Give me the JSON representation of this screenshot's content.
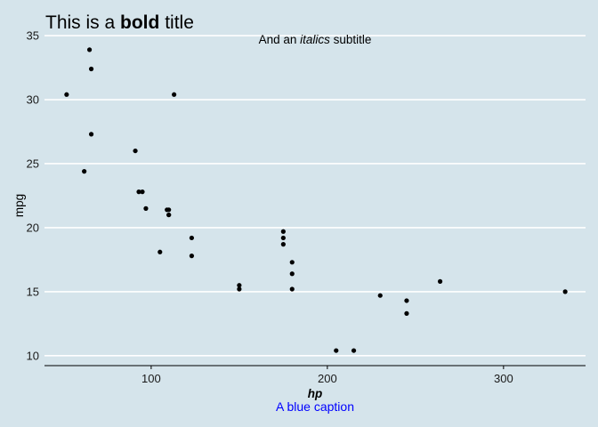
{
  "chart_data": {
    "type": "scatter",
    "title": {
      "prefix": "This is a ",
      "bold": "bold",
      "suffix": " title"
    },
    "subtitle": {
      "prefix": "And an ",
      "italic": "italics",
      "suffix": " subtitle"
    },
    "xlabel": "hp",
    "ylabel": "mpg",
    "caption": "A blue caption",
    "caption_color": "#0000ff",
    "background_color": "#d5e4eb",
    "point_color": "#000000",
    "gridline_color": "#ffffff",
    "grid": "horizontal major lines only",
    "xlim": [
      39.45,
      346.55
    ],
    "ylim": [
      9.225,
      35.075
    ],
    "x_ticks": [
      100,
      200,
      300
    ],
    "y_ticks": [
      10,
      15,
      20,
      25,
      30,
      35
    ],
    "points": [
      {
        "x": 110,
        "y": 21.0
      },
      {
        "x": 110,
        "y": 21.0
      },
      {
        "x": 93,
        "y": 22.8
      },
      {
        "x": 110,
        "y": 21.4
      },
      {
        "x": 175,
        "y": 18.7
      },
      {
        "x": 105,
        "y": 18.1
      },
      {
        "x": 245,
        "y": 14.3
      },
      {
        "x": 62,
        "y": 24.4
      },
      {
        "x": 95,
        "y": 22.8
      },
      {
        "x": 123,
        "y": 19.2
      },
      {
        "x": 123,
        "y": 17.8
      },
      {
        "x": 180,
        "y": 16.4
      },
      {
        "x": 180,
        "y": 17.3
      },
      {
        "x": 180,
        "y": 15.2
      },
      {
        "x": 205,
        "y": 10.4
      },
      {
        "x": 215,
        "y": 10.4
      },
      {
        "x": 230,
        "y": 14.7
      },
      {
        "x": 66,
        "y": 32.4
      },
      {
        "x": 52,
        "y": 30.4
      },
      {
        "x": 65,
        "y": 33.9
      },
      {
        "x": 97,
        "y": 21.5
      },
      {
        "x": 150,
        "y": 15.5
      },
      {
        "x": 150,
        "y": 15.2
      },
      {
        "x": 245,
        "y": 13.3
      },
      {
        "x": 175,
        "y": 19.2
      },
      {
        "x": 66,
        "y": 27.3
      },
      {
        "x": 91,
        "y": 26.0
      },
      {
        "x": 113,
        "y": 30.4
      },
      {
        "x": 264,
        "y": 15.8
      },
      {
        "x": 175,
        "y": 19.7
      },
      {
        "x": 335,
        "y": 15.0
      },
      {
        "x": 109,
        "y": 21.4
      }
    ]
  }
}
